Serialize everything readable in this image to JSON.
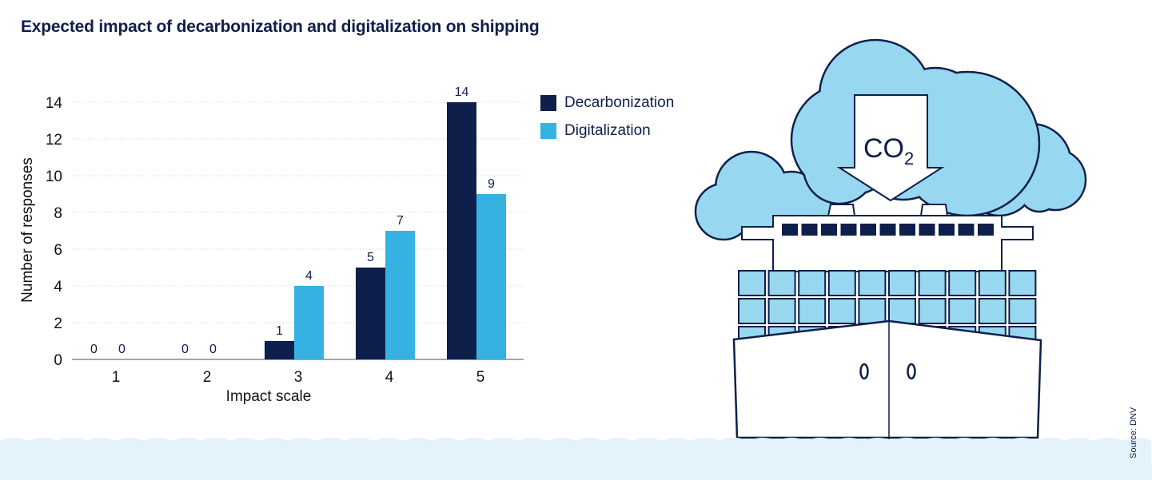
{
  "title": "Expected impact of decarbonization and digitalization on shipping",
  "source": "Source: DNV",
  "illustration": {
    "label": "CO",
    "subscript": "2"
  },
  "colors": {
    "decarbonization": "#0f1f4b",
    "digitalization": "#35b2e1",
    "cloud": "#97d7f0",
    "water": "#e4f3fb"
  },
  "chart_data": {
    "type": "bar",
    "title": "Expected impact of decarbonization and digitalization on shipping",
    "xlabel": "Impact scale",
    "ylabel": "Number of responses",
    "categories": [
      "1",
      "2",
      "3",
      "4",
      "5"
    ],
    "series": [
      {
        "name": "Decarbonization",
        "values": [
          0,
          0,
          1,
          5,
          14
        ]
      },
      {
        "name": "Digitalization",
        "values": [
          0,
          0,
          4,
          7,
          9
        ]
      }
    ],
    "ylim": [
      0,
      14
    ],
    "yticks": [
      0,
      2,
      4,
      6,
      8,
      10,
      12,
      14
    ],
    "grid": true,
    "legend": "right"
  }
}
